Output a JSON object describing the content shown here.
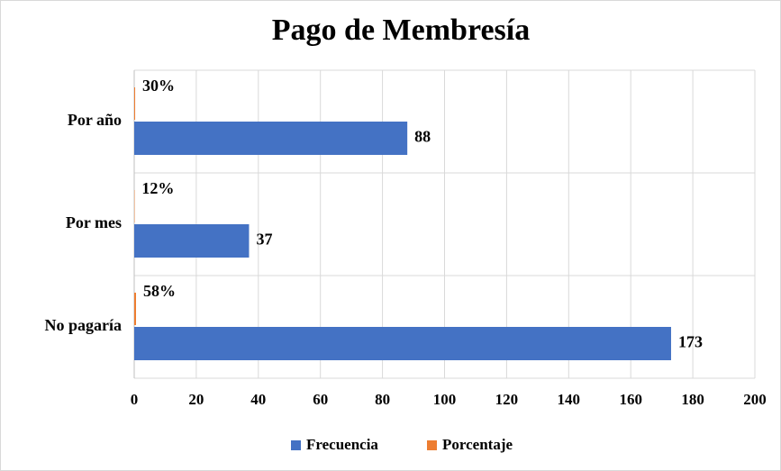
{
  "chart_data": {
    "type": "bar",
    "orientation": "horizontal",
    "title": "Pago de Membresía",
    "categories": [
      "Por año",
      "Por mes",
      "No pagaría"
    ],
    "series": [
      {
        "name": "Porcentaje",
        "color": "#ed7d31",
        "values": [
          0.3,
          0.12,
          0.58
        ],
        "value_labels": [
          "30%",
          "12%",
          "58%"
        ]
      },
      {
        "name": "Frecuencia",
        "color": "#4472c4",
        "values": [
          88,
          37,
          173
        ]
      }
    ],
    "xlim": [
      0,
      200
    ],
    "xticks": [
      0,
      20,
      40,
      60,
      80,
      100,
      120,
      140,
      160,
      180,
      200
    ],
    "grid": true,
    "legend": "bottom"
  }
}
